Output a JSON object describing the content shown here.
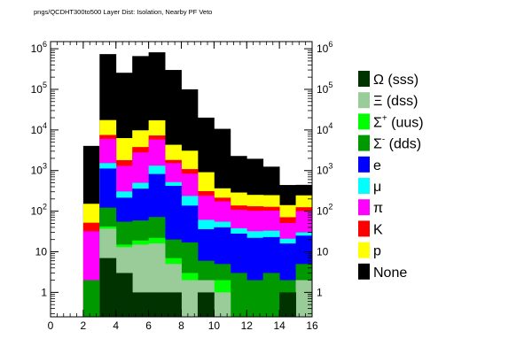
{
  "chart_data": {
    "type": "bar",
    "title": "pngs/QCDHT300to500 Layer Dist: Isolation, Nearby PF Veto",
    "xlabel": "",
    "ylabel": "",
    "yscale": "log",
    "xlim": [
      0,
      16
    ],
    "ylim": [
      0.25,
      1500000
    ],
    "stacked": true,
    "x_ticks": [
      "0",
      "2",
      "4",
      "6",
      "8",
      "10",
      "12",
      "14",
      "16"
    ],
    "y_ticks": [
      "1",
      "10",
      "10^2",
      "10^3",
      "10^4",
      "10^5",
      "10^6"
    ],
    "bin_edges": [
      2,
      3,
      4,
      5,
      6,
      7,
      8,
      9,
      10,
      11,
      12,
      13,
      14,
      15,
      16
    ],
    "legend_position": "right",
    "series": [
      {
        "name": "Ω (sss)",
        "color": "#003300",
        "values": [
          0,
          7,
          3,
          1,
          1,
          1,
          0,
          1,
          0,
          0,
          0,
          0,
          1,
          0
        ]
      },
      {
        "name": "Ξ (dss)",
        "color": "#99cc99",
        "values": [
          0,
          30,
          10,
          14,
          15,
          4,
          2,
          1,
          1,
          0,
          0,
          0,
          0,
          2
        ]
      },
      {
        "name": "Σ⁺ (uus)",
        "color": "#00ff00",
        "values": [
          0,
          5,
          2,
          4,
          6,
          2,
          1,
          0,
          1,
          0,
          0,
          0,
          0,
          0
        ]
      },
      {
        "name": "Σ⁻ (dds)",
        "color": "#009900",
        "values": [
          2,
          80,
          40,
          40,
          50,
          13,
          14,
          4,
          3,
          3,
          2,
          3,
          1,
          3
        ]
      },
      {
        "name": "e",
        "color": "#0000ff",
        "values": [
          0,
          1000,
          160,
          300,
          750,
          400,
          120,
          30,
          35,
          25,
          20,
          20,
          14,
          20
        ]
      },
      {
        "name": "μ",
        "color": "#00ffff",
        "values": [
          0,
          400,
          90,
          140,
          500,
          100,
          100,
          25,
          15,
          10,
          10,
          10,
          5,
          5
        ]
      },
      {
        "name": "π",
        "color": "#ff00ff",
        "values": [
          30,
          4500,
          1000,
          2300,
          4500,
          1000,
          600,
          180,
          120,
          70,
          70,
          70,
          30,
          70
        ]
      },
      {
        "name": "K",
        "color": "#ff0000",
        "values": [
          20,
          1500,
          500,
          1000,
          1500,
          300,
          250,
          70,
          40,
          30,
          30,
          25,
          20,
          25
        ]
      },
      {
        "name": "p",
        "color": "#ffff00",
        "values": [
          100,
          10000,
          4500,
          6000,
          10000,
          2500,
          2000,
          600,
          150,
          150,
          120,
          120,
          70,
          120
        ]
      },
      {
        "name": "None",
        "color": "#000000",
        "values": [
          3900,
          720000,
          250000,
          650000,
          800000,
          296000,
          97000,
          19200,
          10300,
          2000,
          1700,
          1000,
          300,
          200
        ]
      }
    ]
  }
}
